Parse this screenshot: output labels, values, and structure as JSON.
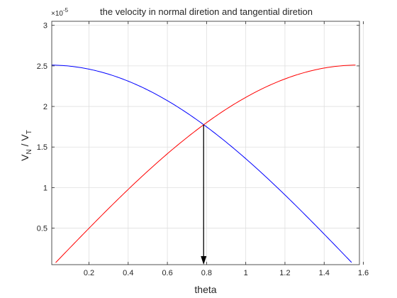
{
  "chart_data": {
    "type": "line",
    "title": "the velocity in normal diretion and tangential diretion",
    "xlabel": "theta",
    "ylabel": {
      "base": "V",
      "sub1": "N",
      "sep": " / V",
      "sub2": "T"
    },
    "yexponent": {
      "prefix": "×10",
      "power": "-5"
    },
    "xlim": [
      0.01,
      1.58
    ],
    "ylim": [
      0.05,
      3.05
    ],
    "xticks": [
      0.2,
      0.4,
      0.6,
      0.8,
      1,
      1.2,
      1.4,
      1.6
    ],
    "xtick_labels": [
      "0.2",
      "0.4",
      "0.6",
      "0.8",
      "1",
      "1.2",
      "1.4",
      "1.6"
    ],
    "yticks": [
      0.5,
      1,
      1.5,
      2,
      2.5,
      3
    ],
    "ytick_labels": [
      "0.5",
      "1",
      "1.5",
      "2",
      "2.5",
      "3"
    ],
    "grid": true,
    "series": [
      {
        "color": "#0000ff",
        "amplitude": 2.51,
        "function": "cos",
        "x_range": [
          0.01,
          1.54
        ]
      },
      {
        "color": "#ff0000",
        "amplitude": 2.51,
        "function": "sin",
        "x_range": [
          0.03,
          1.56
        ]
      }
    ],
    "annotation": {
      "type": "arrow",
      "x": 0.785,
      "y_from": 1.775,
      "y_to": 0.05,
      "color": "#000000"
    }
  }
}
